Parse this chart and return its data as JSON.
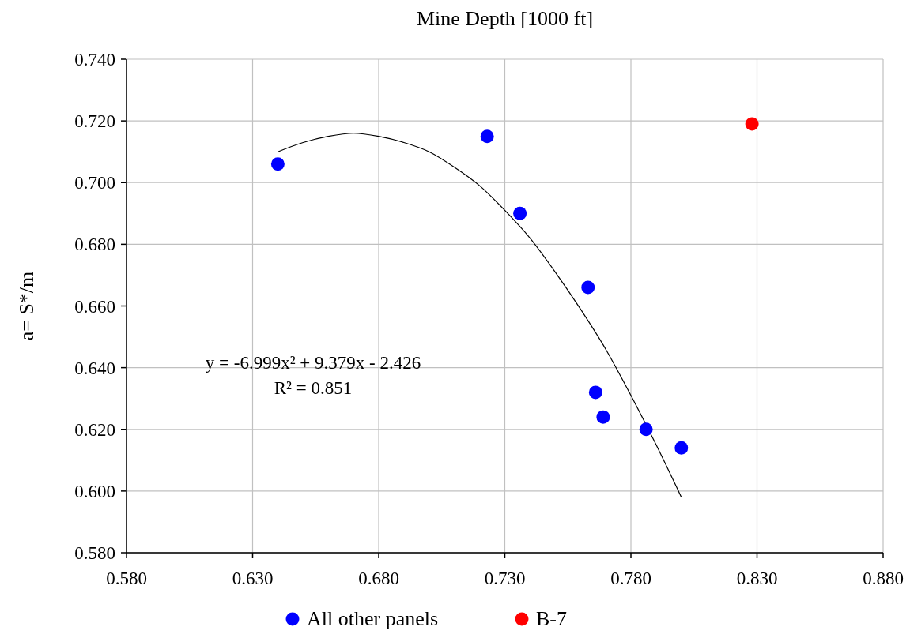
{
  "chart_data": {
    "type": "scatter",
    "xlabel": "Mine Depth  [1000 ft]",
    "ylabel": "a= S*/m",
    "xlim": [
      0.58,
      0.88
    ],
    "xticks": [
      {
        "value": 0.58,
        "label": "0.580"
      },
      {
        "value": 0.63,
        "label": "0.630"
      },
      {
        "value": 0.68,
        "label": "0.680"
      },
      {
        "value": 0.73,
        "label": "0.730"
      },
      {
        "value": 0.78,
        "label": "0.780"
      },
      {
        "value": 0.83,
        "label": "0.830"
      },
      {
        "value": 0.88,
        "label": "0.880"
      }
    ],
    "ylim": [
      0.58,
      0.74
    ],
    "yticks": [
      {
        "value": 0.58,
        "label": "0.580"
      },
      {
        "value": 0.6,
        "label": "0.600"
      },
      {
        "value": 0.62,
        "label": "0.620"
      },
      {
        "value": 0.64,
        "label": "0.640"
      },
      {
        "value": 0.66,
        "label": "0.660"
      },
      {
        "value": 0.68,
        "label": "0.680"
      },
      {
        "value": 0.7,
        "label": "0.700"
      },
      {
        "value": 0.72,
        "label": "0.720"
      },
      {
        "value": 0.74,
        "label": "0.740"
      }
    ],
    "grid": true,
    "legend": "bottom",
    "marker": "circle",
    "series": [
      {
        "name": "All other panels",
        "color": "#0000ff",
        "x": [
          0.64,
          0.723,
          0.736,
          0.763,
          0.766,
          0.769,
          0.786,
          0.8
        ],
        "values": [
          0.706,
          0.715,
          0.69,
          0.666,
          0.632,
          0.624,
          0.62,
          0.614
        ]
      },
      {
        "name": "B-7",
        "color": "#ff0000",
        "x": [
          0.828
        ],
        "values": [
          0.719
        ]
      },
      {
        "type": "line",
        "color": "#000000",
        "marker": "none",
        "x": [
          0.64,
          0.65,
          0.66,
          0.67,
          0.68,
          0.69,
          0.7,
          0.71,
          0.72,
          0.73,
          0.74,
          0.75,
          0.76,
          0.77,
          0.78,
          0.79,
          0.8
        ],
        "values": [
          0.71,
          0.713,
          0.715,
          0.716,
          0.715,
          0.713,
          0.71,
          0.705,
          0.699,
          0.691,
          0.682,
          0.671,
          0.659,
          0.646,
          0.631,
          0.615,
          0.598
        ]
      }
    ],
    "annotations": [
      "y = -6.999x² + 9.379x - 2.426",
      "R² = 0.851"
    ]
  }
}
